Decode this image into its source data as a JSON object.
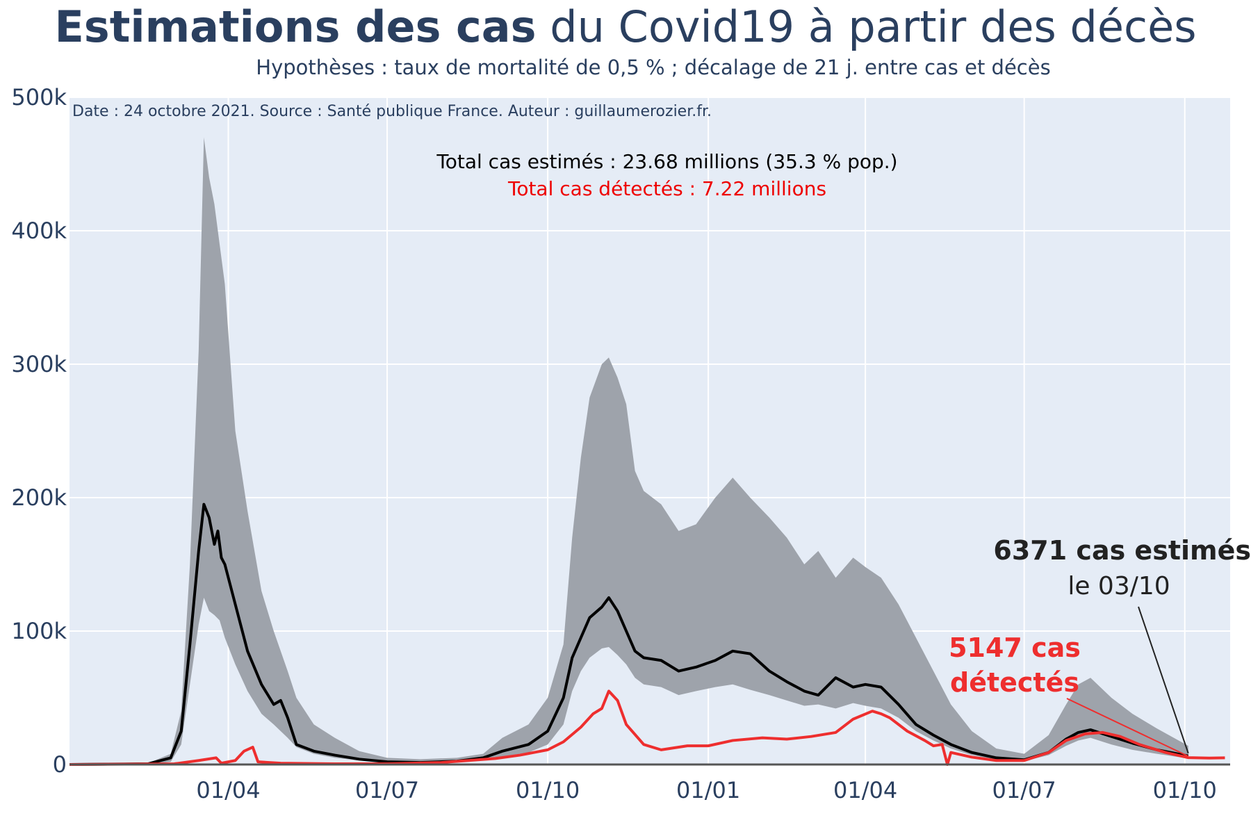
{
  "header": {
    "title_bold": "Estimations des cas",
    "title_rest": " du Covid19 à partir des décès",
    "subtitle": "Hypothèses : taux de mortalité de 0,5 % ; décalage de 21 j. entre cas et décès"
  },
  "notes": {
    "source": "Date : 24 octobre 2021. Source : Santé publique France. Auteur : guillaumerozier.fr.",
    "total_estimated": "Total cas estimés : 23.68 millions (35.3 % pop.)",
    "total_detected": "Total cas détectés : 7.22 millions"
  },
  "annotations": {
    "estimated_line1": "6371 cas estimés",
    "estimated_line2": "le 03/10",
    "detected_line1": "5147 cas",
    "detected_line2": "détectés"
  },
  "colors": {
    "plot_bg": "#e5ecf6",
    "grid": "#ffffff",
    "band": "#9ea3ab",
    "estimated": "#000000",
    "detected": "#ee2e2e",
    "axis_text": "#2a3f5f"
  },
  "chart_data": {
    "type": "line",
    "title": "Estimations des cas du Covid19 à partir des décès",
    "subtitle": "Hypothèses : taux de mortalité de 0,5 % ; décalage de 21 j. entre cas et décès",
    "xlabel": "",
    "ylabel": "",
    "x_range": [
      "2020-01-01",
      "2021-10-27"
    ],
    "ylim": [
      0,
      500000
    ],
    "y_ticks": [
      0,
      100000,
      200000,
      300000,
      400000,
      500000
    ],
    "y_tick_labels": [
      "0",
      "100k",
      "200k",
      "300k",
      "400k",
      "500k"
    ],
    "x_ticks": [
      "2020-04-01",
      "2020-07-01",
      "2020-10-01",
      "2021-01-01",
      "2021-04-01",
      "2021-07-01",
      "2021-10-01"
    ],
    "x_tick_labels": [
      "01/04",
      "01/07",
      "01/10",
      "01/01",
      "01/04",
      "01/07",
      "01/10"
    ],
    "grid": true,
    "series": [
      {
        "kind": "band",
        "upper": [
          [
            "2020-01-01",
            0
          ],
          [
            "2020-02-15",
            1000
          ],
          [
            "2020-02-28",
            8000
          ],
          [
            "2020-03-05",
            40000
          ],
          [
            "2020-03-10",
            150000
          ],
          [
            "2020-03-15",
            310000
          ],
          [
            "2020-03-18",
            470000
          ],
          [
            "2020-03-21",
            440000
          ],
          [
            "2020-03-24",
            420000
          ],
          [
            "2020-03-27",
            390000
          ],
          [
            "2020-03-30",
            360000
          ],
          [
            "2020-04-05",
            250000
          ],
          [
            "2020-04-12",
            190000
          ],
          [
            "2020-04-20",
            130000
          ],
          [
            "2020-04-27",
            100000
          ],
          [
            "2020-05-05",
            70000
          ],
          [
            "2020-05-10",
            50000
          ],
          [
            "2020-05-20",
            30000
          ],
          [
            "2020-06-01",
            20000
          ],
          [
            "2020-06-15",
            10000
          ],
          [
            "2020-07-01",
            5000
          ],
          [
            "2020-07-20",
            4000
          ],
          [
            "2020-08-10",
            5000
          ],
          [
            "2020-08-25",
            8000
          ],
          [
            "2020-09-05",
            20000
          ],
          [
            "2020-09-20",
            30000
          ],
          [
            "2020-10-01",
            50000
          ],
          [
            "2020-10-10",
            90000
          ],
          [
            "2020-10-15",
            170000
          ],
          [
            "2020-10-20",
            230000
          ],
          [
            "2020-10-25",
            275000
          ],
          [
            "2020-11-01",
            300000
          ],
          [
            "2020-11-05",
            305000
          ],
          [
            "2020-11-10",
            290000
          ],
          [
            "2020-11-15",
            270000
          ],
          [
            "2020-11-20",
            220000
          ],
          [
            "2020-11-25",
            205000
          ],
          [
            "2020-12-05",
            195000
          ],
          [
            "2020-12-15",
            175000
          ],
          [
            "2020-12-25",
            180000
          ],
          [
            "2021-01-05",
            200000
          ],
          [
            "2021-01-15",
            215000
          ],
          [
            "2021-01-25",
            200000
          ],
          [
            "2021-02-05",
            185000
          ],
          [
            "2021-02-15",
            170000
          ],
          [
            "2021-02-25",
            150000
          ],
          [
            "2021-03-05",
            160000
          ],
          [
            "2021-03-15",
            140000
          ],
          [
            "2021-03-25",
            155000
          ],
          [
            "2021-04-01",
            148000
          ],
          [
            "2021-04-10",
            140000
          ],
          [
            "2021-04-20",
            120000
          ],
          [
            "2021-04-30",
            95000
          ],
          [
            "2021-05-10",
            70000
          ],
          [
            "2021-05-20",
            45000
          ],
          [
            "2021-06-01",
            25000
          ],
          [
            "2021-06-15",
            12000
          ],
          [
            "2021-07-01",
            8000
          ],
          [
            "2021-07-15",
            22000
          ],
          [
            "2021-07-25",
            45000
          ],
          [
            "2021-08-01",
            60000
          ],
          [
            "2021-08-08",
            65000
          ],
          [
            "2021-08-20",
            50000
          ],
          [
            "2021-09-01",
            38000
          ],
          [
            "2021-09-15",
            27000
          ],
          [
            "2021-10-03",
            14000
          ]
        ],
        "lower": [
          [
            "2020-01-01",
            0
          ],
          [
            "2020-02-15",
            0
          ],
          [
            "2020-02-28",
            2000
          ],
          [
            "2020-03-05",
            15000
          ],
          [
            "2020-03-10",
            60000
          ],
          [
            "2020-03-15",
            105000
          ],
          [
            "2020-03-18",
            125000
          ],
          [
            "2020-03-21",
            115000
          ],
          [
            "2020-03-24",
            112000
          ],
          [
            "2020-03-27",
            108000
          ],
          [
            "2020-03-30",
            95000
          ],
          [
            "2020-04-05",
            75000
          ],
          [
            "2020-04-12",
            55000
          ],
          [
            "2020-04-20",
            38000
          ],
          [
            "2020-04-27",
            30000
          ],
          [
            "2020-05-05",
            20000
          ],
          [
            "2020-05-10",
            13000
          ],
          [
            "2020-05-20",
            8000
          ],
          [
            "2020-06-01",
            5000
          ],
          [
            "2020-06-15",
            3000
          ],
          [
            "2020-07-01",
            1500
          ],
          [
            "2020-07-20",
            1000
          ],
          [
            "2020-08-10",
            1500
          ],
          [
            "2020-08-25",
            3000
          ],
          [
            "2020-09-05",
            6000
          ],
          [
            "2020-09-20",
            9000
          ],
          [
            "2020-10-01",
            15000
          ],
          [
            "2020-10-10",
            30000
          ],
          [
            "2020-10-15",
            55000
          ],
          [
            "2020-10-20",
            70000
          ],
          [
            "2020-10-25",
            80000
          ],
          [
            "2020-11-01",
            87000
          ],
          [
            "2020-11-05",
            88000
          ],
          [
            "2020-11-10",
            82000
          ],
          [
            "2020-11-15",
            75000
          ],
          [
            "2020-11-20",
            65000
          ],
          [
            "2020-11-25",
            60000
          ],
          [
            "2020-12-05",
            58000
          ],
          [
            "2020-12-15",
            52000
          ],
          [
            "2020-12-25",
            55000
          ],
          [
            "2021-01-05",
            58000
          ],
          [
            "2021-01-15",
            60000
          ],
          [
            "2021-01-25",
            56000
          ],
          [
            "2021-02-05",
            52000
          ],
          [
            "2021-02-15",
            48000
          ],
          [
            "2021-02-25",
            44000
          ],
          [
            "2021-03-05",
            45000
          ],
          [
            "2021-03-15",
            42000
          ],
          [
            "2021-03-25",
            46000
          ],
          [
            "2021-04-01",
            44000
          ],
          [
            "2021-04-10",
            42000
          ],
          [
            "2021-04-20",
            35000
          ],
          [
            "2021-04-30",
            25000
          ],
          [
            "2021-05-10",
            18000
          ],
          [
            "2021-05-20",
            12000
          ],
          [
            "2021-06-01",
            7000
          ],
          [
            "2021-06-15",
            3500
          ],
          [
            "2021-07-01",
            2500
          ],
          [
            "2021-07-15",
            7000
          ],
          [
            "2021-07-25",
            14000
          ],
          [
            "2021-08-01",
            18000
          ],
          [
            "2021-08-08",
            20000
          ],
          [
            "2021-08-20",
            15000
          ],
          [
            "2021-09-01",
            11000
          ],
          [
            "2021-09-15",
            8000
          ],
          [
            "2021-10-03",
            4500
          ]
        ]
      },
      {
        "kind": "line",
        "color": "#000000",
        "points": [
          [
            "2020-01-01",
            0
          ],
          [
            "2020-02-15",
            500
          ],
          [
            "2020-02-28",
            5000
          ],
          [
            "2020-03-05",
            25000
          ],
          [
            "2020-03-10",
            90000
          ],
          [
            "2020-03-15",
            160000
          ],
          [
            "2020-03-18",
            195000
          ],
          [
            "2020-03-21",
            185000
          ],
          [
            "2020-03-24",
            165000
          ],
          [
            "2020-03-26",
            175000
          ],
          [
            "2020-03-28",
            155000
          ],
          [
            "2020-03-30",
            150000
          ],
          [
            "2020-04-05",
            120000
          ],
          [
            "2020-04-12",
            85000
          ],
          [
            "2020-04-20",
            60000
          ],
          [
            "2020-04-27",
            45000
          ],
          [
            "2020-05-01",
            48000
          ],
          [
            "2020-05-05",
            35000
          ],
          [
            "2020-05-10",
            15000
          ],
          [
            "2020-05-20",
            10000
          ],
          [
            "2020-06-01",
            7000
          ],
          [
            "2020-06-15",
            4000
          ],
          [
            "2020-07-01",
            2000
          ],
          [
            "2020-07-20",
            1500
          ],
          [
            "2020-08-10",
            2500
          ],
          [
            "2020-08-25",
            5000
          ],
          [
            "2020-09-05",
            10000
          ],
          [
            "2020-09-20",
            15000
          ],
          [
            "2020-10-01",
            25000
          ],
          [
            "2020-10-10",
            50000
          ],
          [
            "2020-10-15",
            80000
          ],
          [
            "2020-10-20",
            95000
          ],
          [
            "2020-10-25",
            110000
          ],
          [
            "2020-11-01",
            118000
          ],
          [
            "2020-11-05",
            125000
          ],
          [
            "2020-11-10",
            115000
          ],
          [
            "2020-11-15",
            100000
          ],
          [
            "2020-11-20",
            85000
          ],
          [
            "2020-11-25",
            80000
          ],
          [
            "2020-12-05",
            78000
          ],
          [
            "2020-12-15",
            70000
          ],
          [
            "2020-12-25",
            73000
          ],
          [
            "2021-01-05",
            78000
          ],
          [
            "2021-01-15",
            85000
          ],
          [
            "2021-01-25",
            83000
          ],
          [
            "2021-02-05",
            70000
          ],
          [
            "2021-02-15",
            62000
          ],
          [
            "2021-02-25",
            55000
          ],
          [
            "2021-03-05",
            52000
          ],
          [
            "2021-03-15",
            65000
          ],
          [
            "2021-03-25",
            58000
          ],
          [
            "2021-04-01",
            60000
          ],
          [
            "2021-04-10",
            58000
          ],
          [
            "2021-04-20",
            45000
          ],
          [
            "2021-04-30",
            30000
          ],
          [
            "2021-05-10",
            22000
          ],
          [
            "2021-05-20",
            15000
          ],
          [
            "2021-06-01",
            9000
          ],
          [
            "2021-06-15",
            5000
          ],
          [
            "2021-07-01",
            3500
          ],
          [
            "2021-07-15",
            9000
          ],
          [
            "2021-07-25",
            19000
          ],
          [
            "2021-08-01",
            24000
          ],
          [
            "2021-08-08",
            26000
          ],
          [
            "2021-08-20",
            21000
          ],
          [
            "2021-09-01",
            16000
          ],
          [
            "2021-09-15",
            11000
          ],
          [
            "2021-10-03",
            6371
          ]
        ]
      },
      {
        "kind": "line",
        "color": "#ee2e2e",
        "points": [
          [
            "2020-01-01",
            0
          ],
          [
            "2020-03-01",
            500
          ],
          [
            "2020-03-15",
            3000
          ],
          [
            "2020-03-25",
            5000
          ],
          [
            "2020-03-28",
            1000
          ],
          [
            "2020-04-05",
            3000
          ],
          [
            "2020-04-10",
            10000
          ],
          [
            "2020-04-15",
            13000
          ],
          [
            "2020-04-18",
            2000
          ],
          [
            "2020-05-01",
            1000
          ],
          [
            "2020-06-01",
            500
          ],
          [
            "2020-07-01",
            500
          ],
          [
            "2020-08-01",
            1500
          ],
          [
            "2020-09-01",
            4500
          ],
          [
            "2020-09-15",
            7000
          ],
          [
            "2020-10-01",
            11000
          ],
          [
            "2020-10-10",
            17000
          ],
          [
            "2020-10-20",
            28000
          ],
          [
            "2020-10-27",
            38000
          ],
          [
            "2020-11-01",
            42000
          ],
          [
            "2020-11-05",
            55000
          ],
          [
            "2020-11-10",
            48000
          ],
          [
            "2020-11-15",
            30000
          ],
          [
            "2020-11-25",
            15000
          ],
          [
            "2020-12-05",
            11000
          ],
          [
            "2020-12-20",
            14000
          ],
          [
            "2021-01-01",
            14000
          ],
          [
            "2021-01-15",
            18000
          ],
          [
            "2021-02-01",
            20000
          ],
          [
            "2021-02-15",
            19000
          ],
          [
            "2021-03-01",
            21000
          ],
          [
            "2021-03-15",
            24000
          ],
          [
            "2021-03-25",
            34000
          ],
          [
            "2021-04-05",
            40000
          ],
          [
            "2021-04-10",
            38000
          ],
          [
            "2021-04-15",
            35000
          ],
          [
            "2021-04-25",
            25000
          ],
          [
            "2021-05-05",
            18000
          ],
          [
            "2021-05-10",
            14000
          ],
          [
            "2021-05-15",
            15000
          ],
          [
            "2021-05-18",
            0
          ],
          [
            "2021-05-20",
            9000
          ],
          [
            "2021-06-01",
            5500
          ],
          [
            "2021-06-15",
            3000
          ],
          [
            "2021-07-01",
            3000
          ],
          [
            "2021-07-15",
            9000
          ],
          [
            "2021-07-25",
            18000
          ],
          [
            "2021-08-05",
            23000
          ],
          [
            "2021-08-15",
            24000
          ],
          [
            "2021-08-25",
            21000
          ],
          [
            "2021-09-05",
            15000
          ],
          [
            "2021-09-20",
            9000
          ],
          [
            "2021-10-03",
            5147
          ],
          [
            "2021-10-15",
            4800
          ],
          [
            "2021-10-24",
            5000
          ]
        ]
      }
    ]
  }
}
